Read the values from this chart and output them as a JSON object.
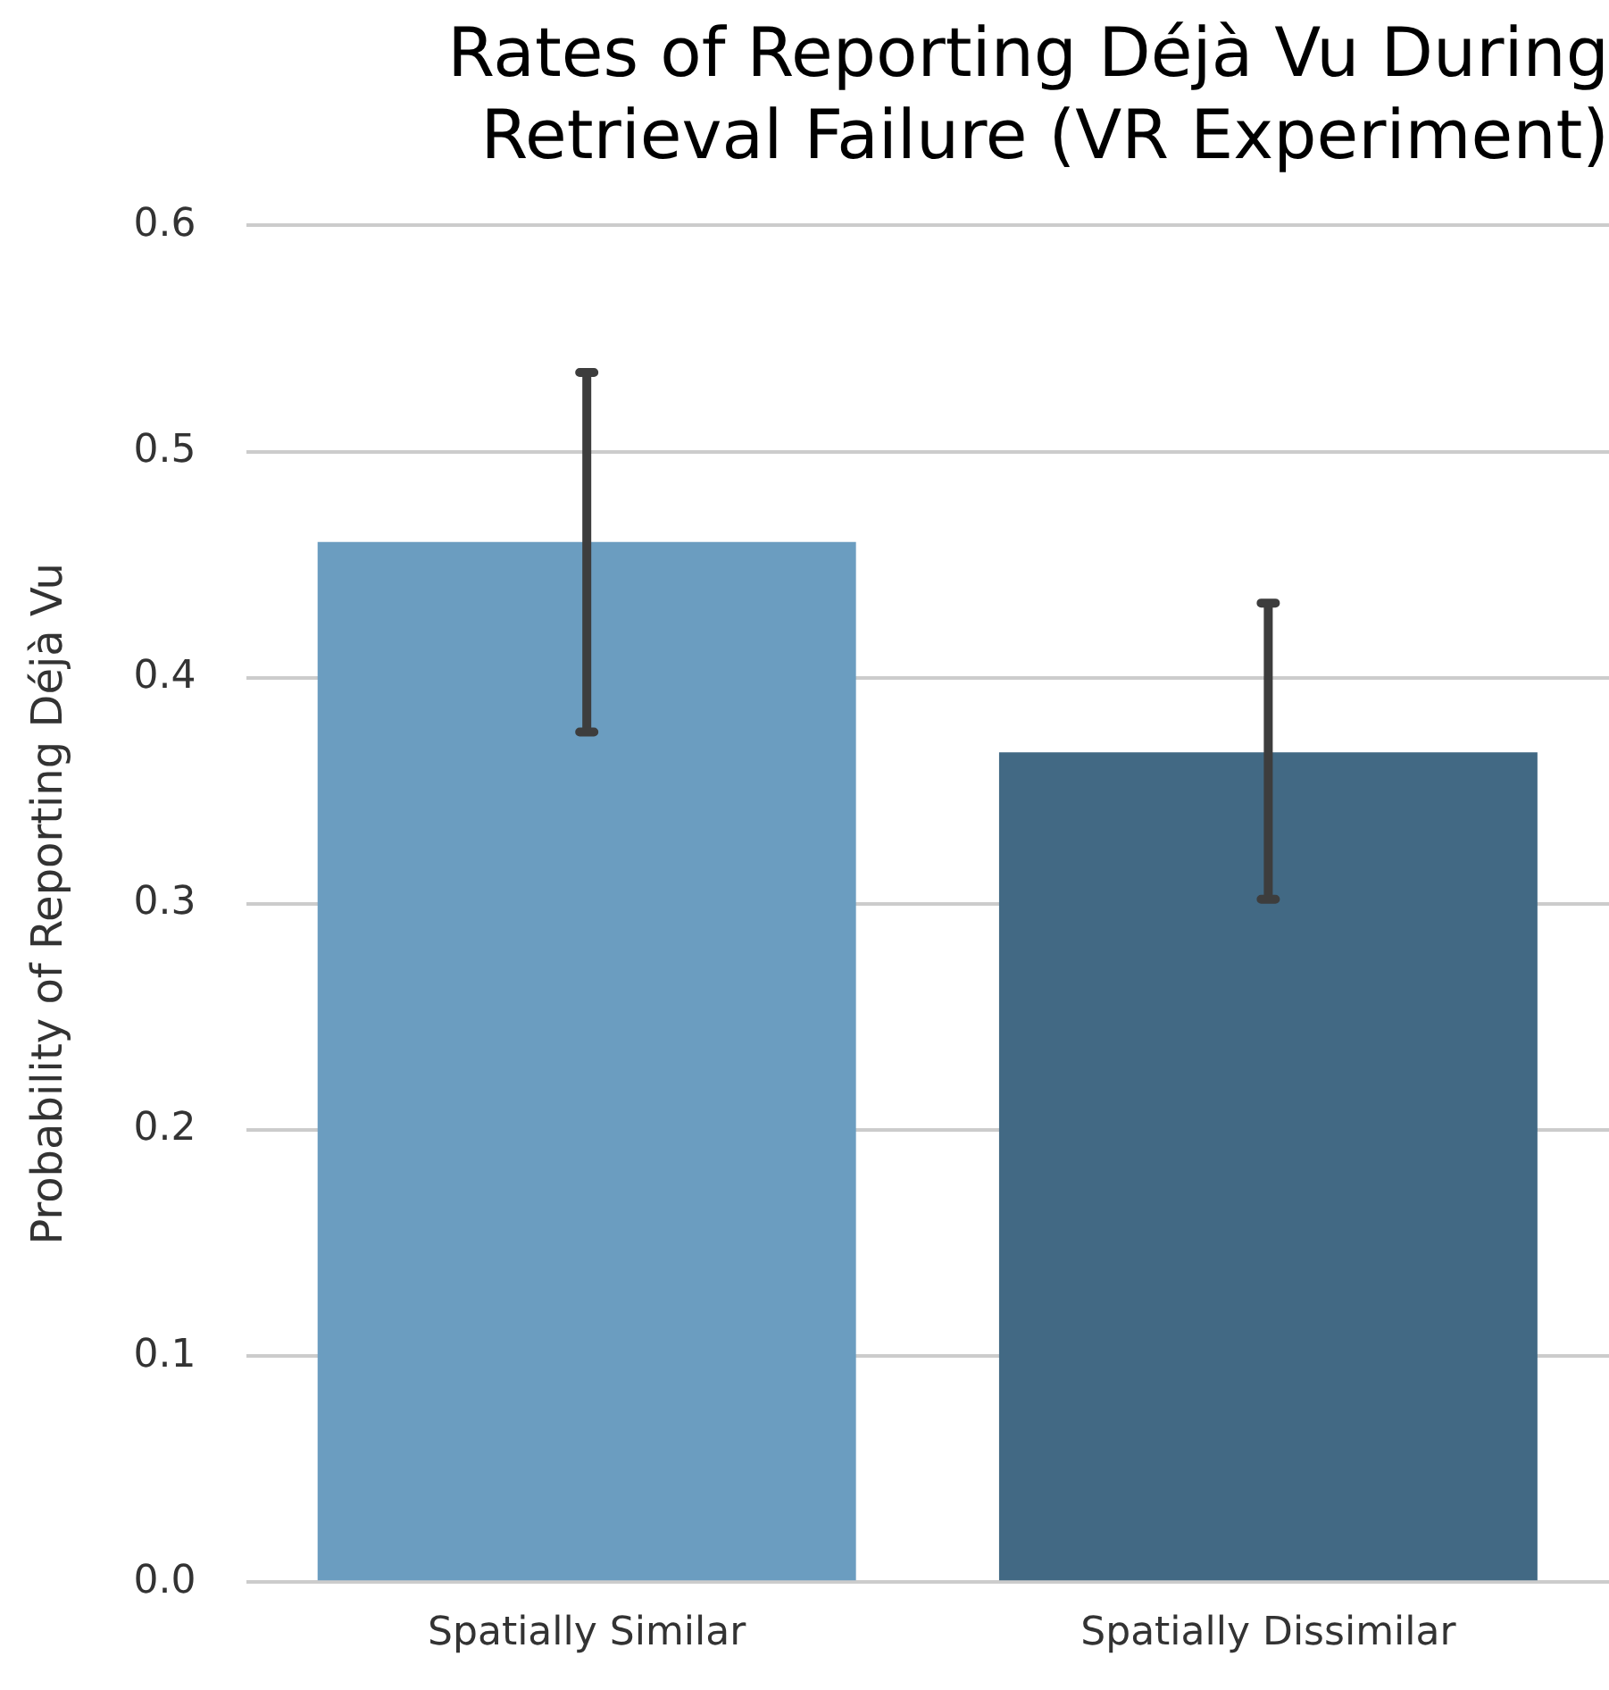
{
  "chart_data": {
    "type": "bar",
    "title": "Rates of Reporting Déjà Vu During Retrieval Failure (VR Experiment)",
    "ylabel": "Probability of Reporting Déjà Vu",
    "categories": [
      "Spatially Similar",
      "Spatially Dissimilar"
    ],
    "values": [
      0.46,
      0.367
    ],
    "colors": [
      "#6b9dc0",
      "#426984"
    ],
    "errors": [
      [
        0.376,
        0.535
      ],
      [
        0.302,
        0.433
      ]
    ],
    "ylim": [
      0,
      0.6
    ],
    "yticks": [
      {
        "value": 0,
        "label": "0.0"
      },
      {
        "value": 0.1,
        "label": "0.1"
      },
      {
        "value": 0.2,
        "label": "0.2"
      },
      {
        "value": 0.3,
        "label": "0.3"
      },
      {
        "value": 0.4,
        "label": "0.4"
      },
      {
        "value": 0.5,
        "label": "0.5"
      },
      {
        "value": 0.6,
        "label": "0.6"
      }
    ],
    "grid": "y",
    "legend": false
  }
}
